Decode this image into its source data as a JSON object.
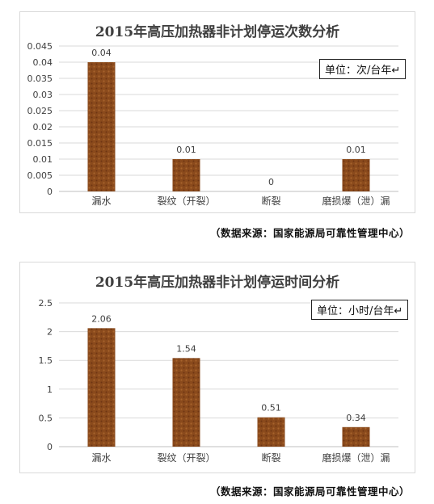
{
  "charts": [
    {
      "unit": "单位：次/台年↵",
      "source": "（数据来源：国家能源局可靠性管理中心）"
    },
    {
      "unit": "单位：小时/台年↵",
      "source": "（数据来源：国家能源局可靠性管理中心）"
    }
  ],
  "colors": {
    "bar": "#8a4a1c",
    "bar_light": "#a8632c",
    "grid": "#d9d9d9",
    "axis": "#bfbfbf",
    "text": "#404040"
  },
  "chart_data": [
    {
      "type": "bar",
      "title": "2015年高压加热器非计划停运次数分析",
      "categories": [
        "漏水",
        "裂纹（开裂）",
        "断裂",
        "磨损爆（泄）漏"
      ],
      "values": [
        0.04,
        0.01,
        0,
        0.01
      ],
      "value_labels": [
        "0.04",
        "0.01",
        "0",
        "0.01"
      ],
      "yticks": [
        "0",
        "0.005",
        "0.01",
        "0.015",
        "0.02",
        "0.025",
        "0.03",
        "0.035",
        "0.04",
        "0.045"
      ],
      "ylim": [
        0,
        0.045
      ],
      "grid": true
    },
    {
      "type": "bar",
      "title": "2015年高压加热器非计划停运时间分析",
      "categories": [
        "漏水",
        "裂纹（开裂）",
        "断裂",
        "磨损爆（泄）漏"
      ],
      "values": [
        2.06,
        1.54,
        0.51,
        0.34
      ],
      "value_labels": [
        "2.06",
        "1.54",
        "0.51",
        "0.34"
      ],
      "yticks": [
        "0",
        "0.5",
        "1",
        "1.5",
        "2",
        "2.5"
      ],
      "ylim": [
        0,
        2.5
      ],
      "grid": true
    }
  ]
}
